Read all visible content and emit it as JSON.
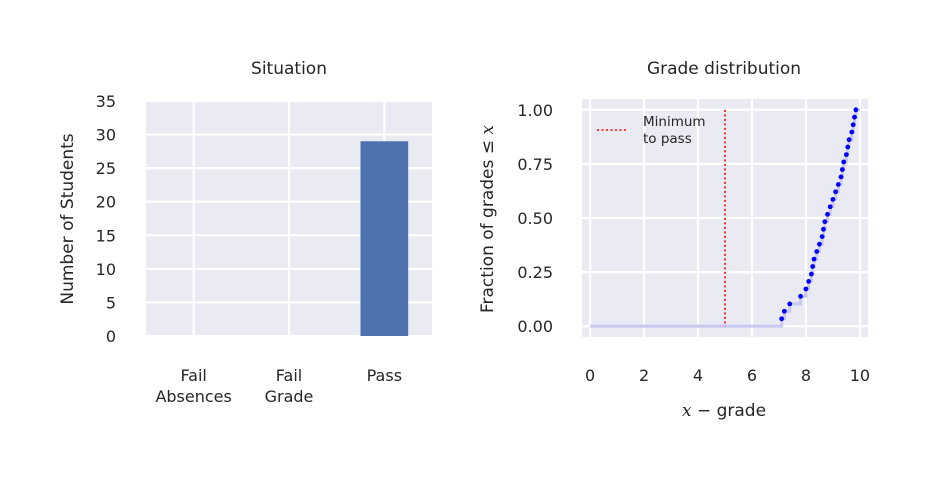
{
  "chart_data": [
    {
      "type": "bar",
      "title": "Situation",
      "ylabel": "Number of Students",
      "xlabel": "",
      "categories": [
        [
          "Fail",
          "Absences"
        ],
        [
          "Fail",
          "Grade"
        ],
        [
          "Pass"
        ]
      ],
      "values": [
        0,
        0,
        29
      ],
      "ylim": [
        0,
        35
      ],
      "yticks": [
        0,
        5,
        10,
        15,
        20,
        25,
        30,
        35
      ],
      "grid": true,
      "bar_color": "#4c72b0"
    },
    {
      "type": "line",
      "subtype": "empirical-cdf",
      "title": "Grade distribution",
      "xlabel_var": "x",
      "xlabel_text": " − grade",
      "ylabel_text": "Fraction of grades ≤ ",
      "ylabel_var": "x",
      "xlim": [
        -0.3,
        10.3
      ],
      "ylim": [
        -0.05,
        1.05
      ],
      "xticks": [
        0,
        2,
        4,
        6,
        8,
        10
      ],
      "yticks": [
        "0.00",
        "0.25",
        "0.50",
        "0.75",
        "1.00"
      ],
      "grid": true,
      "step_color": "#c8c8f0",
      "point_color": "#0000ff",
      "threshold": {
        "x": 5,
        "label": [
          "Minimum",
          "to pass"
        ],
        "color": "#ff0000"
      },
      "points": [
        {
          "x": 7.1,
          "y": 0.034
        },
        {
          "x": 7.2,
          "y": 0.069
        },
        {
          "x": 7.4,
          "y": 0.103
        },
        {
          "x": 7.8,
          "y": 0.138
        },
        {
          "x": 8.0,
          "y": 0.172
        },
        {
          "x": 8.1,
          "y": 0.207
        },
        {
          "x": 8.2,
          "y": 0.241
        },
        {
          "x": 8.25,
          "y": 0.276
        },
        {
          "x": 8.3,
          "y": 0.31
        },
        {
          "x": 8.4,
          "y": 0.345
        },
        {
          "x": 8.5,
          "y": 0.379
        },
        {
          "x": 8.6,
          "y": 0.414
        },
        {
          "x": 8.65,
          "y": 0.448
        },
        {
          "x": 8.7,
          "y": 0.483
        },
        {
          "x": 8.8,
          "y": 0.517
        },
        {
          "x": 8.9,
          "y": 0.552
        },
        {
          "x": 9.0,
          "y": 0.586
        },
        {
          "x": 9.1,
          "y": 0.621
        },
        {
          "x": 9.2,
          "y": 0.655
        },
        {
          "x": 9.3,
          "y": 0.69
        },
        {
          "x": 9.35,
          "y": 0.724
        },
        {
          "x": 9.4,
          "y": 0.759
        },
        {
          "x": 9.5,
          "y": 0.793
        },
        {
          "x": 9.55,
          "y": 0.828
        },
        {
          "x": 9.6,
          "y": 0.862
        },
        {
          "x": 9.7,
          "y": 0.897
        },
        {
          "x": 9.75,
          "y": 0.931
        },
        {
          "x": 9.8,
          "y": 0.966
        },
        {
          "x": 9.85,
          "y": 1.0
        }
      ],
      "legend_position": "top-left"
    }
  ]
}
